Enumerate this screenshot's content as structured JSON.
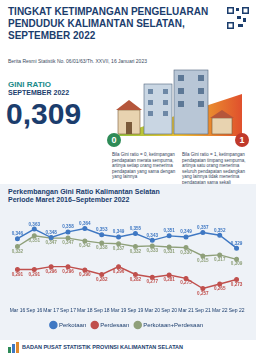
{
  "header": {
    "title": "TINGKAT KETIMPANGAN PENGELUARAN PENDUDUK KALIMANTAN SELATAN, SEPTEMBER 2022",
    "release": "Berita Resmi Statistik No. 06/01/63/Th. XXVII, 16 Januari 2023"
  },
  "gini": {
    "label": "GINI RATIO",
    "period": "SEPTEMBER 2022",
    "value": "0,309"
  },
  "scale": {
    "min": "0",
    "max": "1",
    "min_note": "Bila Gini ratio = 0, ketimpangan pendapatan merata sempurna, artinya setiap orang menerima pendapatan yang sama dengan yang lainnya",
    "max_note": "Bila Gini ratio = 1, ketimpangan pendapatan timpang sempurna, artinya satu orang menerima seluruh pendapatan sedangkan yang lainnya tidak menerima pendapatan sama sekali"
  },
  "footer": "BADAN PUSAT STATISTIK PROVINSI KALIMANTAN SELATAN",
  "chart_data": {
    "type": "line",
    "title": "Perkembangan Gini Ratio Kalimantan Selatan",
    "subtitle": "Periode Maret 2016–September 2022",
    "categories": [
      "Mar 16",
      "Sep 16",
      "Mar 17",
      "Sep 17",
      "Mar 18",
      "Sep 18",
      "Mar 19",
      "Sep 19",
      "Mar 20",
      "Sep 20",
      "Mar 21",
      "Sep 21",
      "Mar 22",
      "Sep 22"
    ],
    "series": [
      {
        "name": "Perkotaan",
        "color": "#3f78c3",
        "values": [
          0.346,
          0.363,
          0.348,
          0.358,
          0.364,
          0.353,
          0.349,
          0.355,
          0.343,
          0.351,
          0.349,
          0.357,
          0.352,
          0.329
        ],
        "value_labels": [
          "0,346",
          "0,363",
          "0,348",
          "0,358",
          "0,364",
          "0,353",
          "0,349",
          "0,355",
          "0,343",
          "0,351",
          "0,349",
          "0,357",
          "0,352",
          "0,329"
        ]
      },
      {
        "name": "Perdesaan",
        "color": "#c0504d",
        "values": [
          0.291,
          0.291,
          0.296,
          0.296,
          0.29,
          0.282,
          0.296,
          0.282,
          0.277,
          0.281,
          0.275,
          0.257,
          0.265,
          0.273
        ],
        "value_labels": [
          "0,291",
          "0,291",
          "0,296",
          "0,296",
          "0,290",
          "0,282",
          "0,296",
          "0,282",
          "0,277",
          "0,281",
          "0,275",
          "0,257",
          "0,265",
          "0,273"
        ]
      },
      {
        "name": "Perkotaan+Perdesaan",
        "color": "#8fa07a",
        "values": [
          0.332,
          0.351,
          0.347,
          0.347,
          0.342,
          0.338,
          0.337,
          0.332,
          0.333,
          0.331,
          0.33,
          0.315,
          0.317,
          0.309
        ],
        "value_labels": [
          "0,332",
          "0,351",
          "0,347",
          "0,347",
          "0,342",
          "0,338",
          "0,337",
          "0,332",
          "0,333",
          "0,331",
          "0,330",
          "0,315",
          "0,317",
          "0,309"
        ]
      }
    ],
    "ylim": [
      0.24,
      0.39
    ],
    "data_labels": true,
    "tick_labels": "x",
    "grid": false,
    "legend": "bottom",
    "marker": "circle"
  }
}
